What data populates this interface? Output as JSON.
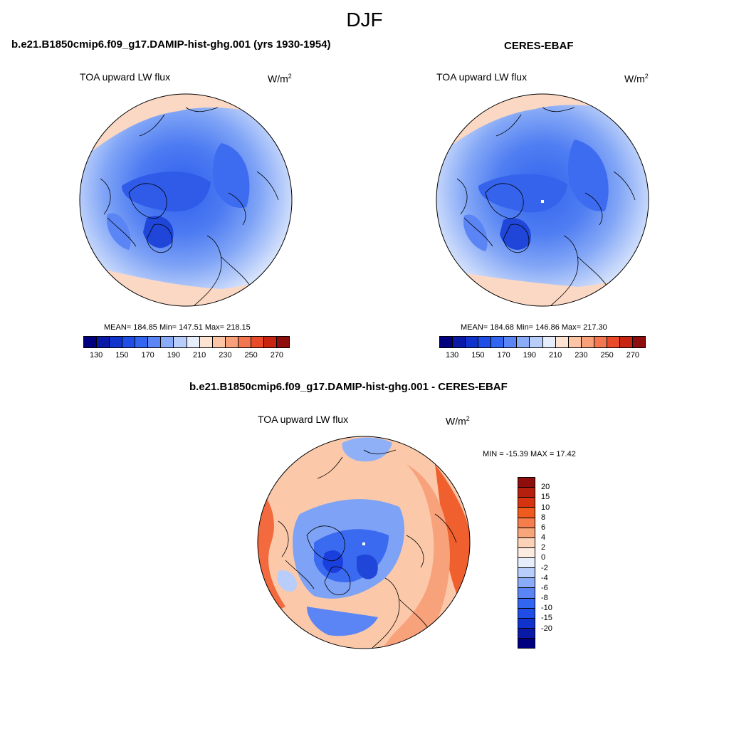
{
  "season": "DJF",
  "panels": [
    {
      "title": "b.e21.B1850cmip6.f09_g17.DAMIP-hist-ghg.001 (yrs 1930-1954)",
      "variable": "TOA upward LW flux",
      "units_base": "W/m",
      "units_exp": "2",
      "stats": "MEAN= 184.85  Min= 147.51  Max= 218.15"
    },
    {
      "title": "CERES-EBAF",
      "variable": "TOA upward LW flux",
      "units_base": "W/m",
      "units_exp": "2",
      "stats": "MEAN= 184.68  Min= 146.86  Max= 217.30"
    }
  ],
  "diff_panel": {
    "title": "b.e21.B1850cmip6.f09_g17.DAMIP-hist-ghg.001 - CERES-EBAF",
    "variable": "TOA upward LW flux",
    "units_base": "W/m",
    "units_exp": "2",
    "stats": "MIN = -15.39 MAX =  17.42"
  },
  "colorbar_main": {
    "colors": [
      "#00007f",
      "#0a1aa6",
      "#0f33cc",
      "#1f4de6",
      "#3366f0",
      "#5b85f5",
      "#8aabf7",
      "#b8cdfa",
      "#e6eefc",
      "#fde4d2",
      "#fbc5a6",
      "#f7a07a",
      "#f27650",
      "#e84a2a",
      "#c82412",
      "#8e0e0e"
    ],
    "tick_labels": [
      "130",
      "150",
      "170",
      "190",
      "210",
      "230",
      "250",
      "270"
    ]
  },
  "colorbar_diff": {
    "colors": [
      "#8e0e0e",
      "#b51f0d",
      "#d63310",
      "#f05a1e",
      "#f57e4c",
      "#f8a579",
      "#fcd3b8",
      "#fcebe0",
      "#e6eefc",
      "#b8cdfa",
      "#8aabf7",
      "#5b85f5",
      "#3366f0",
      "#1f4de6",
      "#0f33cc",
      "#0a1aa6",
      "#00007f"
    ],
    "tick_labels": [
      "20",
      "15",
      "10",
      "8",
      "6",
      "4",
      "2",
      "0",
      "-2",
      "-4",
      "-6",
      "-8",
      "-10",
      "-15",
      "-20"
    ]
  }
}
